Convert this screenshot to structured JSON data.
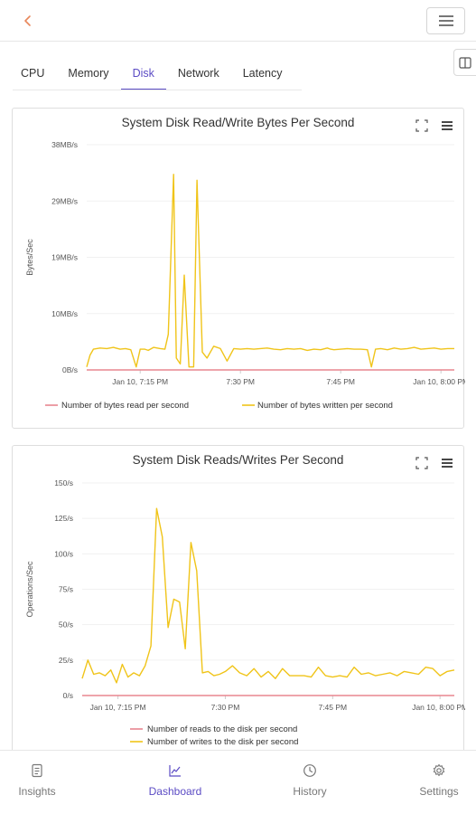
{
  "header": {
    "back_icon": "chevron-left-icon",
    "menu_icon": "hamburger-icon"
  },
  "tabs": [
    {
      "label": "CPU"
    },
    {
      "label": "Memory"
    },
    {
      "label": "Disk"
    },
    {
      "label": "Network"
    },
    {
      "label": "Latency"
    }
  ],
  "active_tab": "Disk",
  "colors": {
    "accent": "#5b4bc4",
    "back": "#e8875b",
    "read": "#e8868f",
    "write": "#f0c419"
  },
  "chart_data": [
    {
      "type": "line",
      "title": "System Disk Read/Write Bytes Per Second",
      "ylabel": "Bytes/Sec",
      "xlabel": "",
      "yticks": [
        "0B/s",
        "10MB/s",
        "19MB/s",
        "29MB/s",
        "38MB/s"
      ],
      "ylim": [
        0,
        38
      ],
      "xticks": [
        {
          "label": "Jan 10, 7:15 PM",
          "t": 15
        },
        {
          "label": "7:30 PM",
          "t": 30
        },
        {
          "label": "7:45 PM",
          "t": 45
        },
        {
          "label": "Jan 10, 8:00 PM",
          "t": 60
        }
      ],
      "xlim": [
        7,
        62
      ],
      "legend": "bottom",
      "series": [
        {
          "name": "Number of bytes read per second",
          "color": "#e8868f",
          "x": [
            7,
            62
          ],
          "y": [
            0,
            0
          ]
        },
        {
          "name": "Number of bytes written per second",
          "color": "#f0c419",
          "x": [
            7,
            7.5,
            8,
            9,
            10,
            11,
            12,
            12.8,
            13.6,
            14.4,
            15,
            15.7,
            16.2,
            17,
            18,
            18.7,
            19.2,
            20,
            20.4,
            21,
            21.6,
            22.3,
            23,
            23.5,
            24.3,
            25,
            26,
            27,
            28,
            29,
            30,
            31,
            32,
            33,
            34,
            35,
            36,
            37,
            38,
            39,
            40,
            41,
            42,
            43,
            43.5,
            44,
            45,
            46,
            47,
            48,
            49,
            49.6,
            50.2,
            51,
            52,
            53,
            54,
            55,
            56,
            57,
            58,
            59,
            60,
            61,
            62
          ],
          "y": [
            0.5,
            2.5,
            3.5,
            3.7,
            3.6,
            3.8,
            3.5,
            3.6,
            3.4,
            0.5,
            3.5,
            3.5,
            3.3,
            3.8,
            3.6,
            3.5,
            6,
            33,
            2,
            1,
            16,
            0.5,
            0.5,
            32,
            3,
            2,
            4,
            3.6,
            1.5,
            3.6,
            3.5,
            3.6,
            3.5,
            3.6,
            3.7,
            3.5,
            3.4,
            3.6,
            3.5,
            3.6,
            3.3,
            3.5,
            3.4,
            3.7,
            3.5,
            3.4,
            3.5,
            3.6,
            3.5,
            3.5,
            3.4,
            0.5,
            3.5,
            3.6,
            3.4,
            3.7,
            3.5,
            3.6,
            3.8,
            3.5,
            3.6,
            3.7,
            3.5,
            3.6,
            3.6
          ]
        }
      ]
    },
    {
      "type": "line",
      "title": "System Disk Reads/Writes Per Second",
      "ylabel": "Operations/Sec",
      "xlabel": "",
      "yticks": [
        "0/s",
        "25/s",
        "50/s",
        "75/s",
        "100/s",
        "125/s",
        "150/s"
      ],
      "ylim": [
        0,
        150
      ],
      "xticks": [
        {
          "label": "Jan 10, 7:15 PM",
          "t": 15
        },
        {
          "label": "7:30 PM",
          "t": 30
        },
        {
          "label": "7:45 PM",
          "t": 45
        },
        {
          "label": "Jan 10, 8:00 PM",
          "t": 60
        }
      ],
      "xlim": [
        10,
        62
      ],
      "legend": "bottom",
      "series": [
        {
          "name": "Number of reads to the disk per second",
          "color": "#e8868f",
          "x": [
            10,
            62
          ],
          "y": [
            0,
            0
          ]
        },
        {
          "name": "Number of writes to the disk per second",
          "color": "#f0c419",
          "x": [
            10,
            10.8,
            11.6,
            12.4,
            13.2,
            14,
            14.8,
            15.6,
            16.4,
            17.2,
            18,
            18.8,
            19.6,
            20.4,
            21.2,
            22,
            22.8,
            23.6,
            24.4,
            25.2,
            26,
            26.8,
            27.6,
            28.4,
            29.2,
            30,
            31,
            32,
            33,
            34,
            35,
            36,
            37,
            38,
            39,
            40,
            41,
            42,
            43,
            44,
            45,
            46,
            47,
            48,
            49,
            50,
            51,
            52,
            53,
            54,
            55,
            56,
            57,
            58,
            59,
            60,
            61,
            62
          ],
          "y": [
            12,
            25,
            15,
            16,
            14,
            18,
            9,
            22,
            13,
            16,
            14,
            21,
            35,
            132,
            112,
            48,
            68,
            66,
            33,
            108,
            88,
            16,
            17,
            14,
            15,
            17,
            21,
            16,
            14,
            19,
            13,
            17,
            12,
            19,
            14,
            14,
            14,
            13,
            20,
            14,
            13,
            14,
            13,
            20,
            15,
            16,
            14,
            15,
            16,
            14,
            17,
            16,
            15,
            20,
            19,
            14,
            17,
            18
          ]
        }
      ]
    }
  ],
  "bottom_nav": [
    {
      "label": "Insights",
      "icon": "document-icon"
    },
    {
      "label": "Dashboard",
      "icon": "line-chart-icon"
    },
    {
      "label": "History",
      "icon": "clock-icon"
    },
    {
      "label": "Settings",
      "icon": "gear-icon"
    }
  ],
  "active_nav": "Dashboard"
}
